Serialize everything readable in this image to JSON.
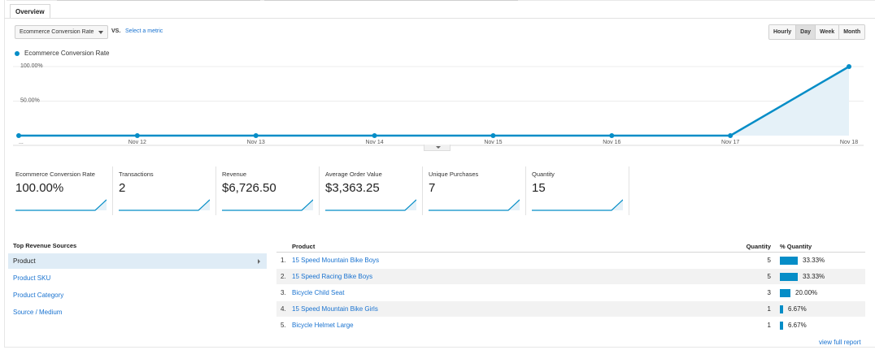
{
  "tabs": {
    "overview": "Overview"
  },
  "controls": {
    "metric_select": "Ecommerce Conversion Rate",
    "vs": "VS.",
    "select_metric": "Select a metric",
    "periods": [
      "Hourly",
      "Day",
      "Week",
      "Month"
    ],
    "active_period": "Day"
  },
  "colors": {
    "series": "#058dc7",
    "link": "#1a73d0",
    "fill": "#e5f1f8"
  },
  "chart_data": {
    "type": "area",
    "series": [
      {
        "name": "Ecommerce Conversion Rate",
        "values": [
          0,
          0,
          0,
          0,
          0,
          0,
          0,
          100
        ]
      }
    ],
    "x_ticks": [
      "...",
      "Nov 12",
      "Nov 13",
      "Nov 14",
      "Nov 15",
      "Nov 16",
      "Nov 17",
      "Nov 18"
    ],
    "y_ticks": [
      "100.00%",
      "50.00%"
    ],
    "ylim": [
      0,
      100
    ],
    "grid": true,
    "legend": "top-left"
  },
  "scorecards": [
    {
      "label": "Ecommerce Conversion Rate",
      "value": "100.00%"
    },
    {
      "label": "Transactions",
      "value": "2"
    },
    {
      "label": "Revenue",
      "value": "$6,726.50"
    },
    {
      "label": "Average Order Value",
      "value": "$3,363.25"
    },
    {
      "label": "Unique Purchases",
      "value": "7"
    },
    {
      "label": "Quantity",
      "value": "15"
    }
  ],
  "top_revenue_sources": {
    "title": "Top Revenue Sources",
    "items": [
      "Product",
      "Product SKU",
      "Product Category",
      "Source / Medium"
    ],
    "selected": "Product"
  },
  "product_table": {
    "headers": {
      "product": "Product",
      "quantity": "Quantity",
      "pct_quantity": "% Quantity"
    },
    "rows": [
      {
        "rank": "1.",
        "name": "15 Speed Mountain Bike Boys",
        "quantity": "5",
        "pct": "33.33%",
        "fraction": 0.3333
      },
      {
        "rank": "2.",
        "name": "15 Speed Racing Bike Boys",
        "quantity": "5",
        "pct": "33.33%",
        "fraction": 0.3333
      },
      {
        "rank": "3.",
        "name": "Bicycle Child Seat",
        "quantity": "3",
        "pct": "20.00%",
        "fraction": 0.2
      },
      {
        "rank": "4.",
        "name": "15 Speed Mountain Bike Girls",
        "quantity": "1",
        "pct": "6.67%",
        "fraction": 0.0667
      },
      {
        "rank": "5.",
        "name": "Bicycle Helmet Large",
        "quantity": "1",
        "pct": "6.67%",
        "fraction": 0.0667
      }
    ],
    "view_full": "view full report"
  }
}
